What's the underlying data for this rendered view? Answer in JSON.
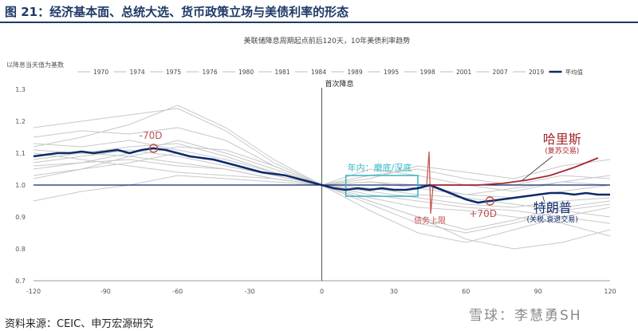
{
  "header": {
    "title": "图 21：经济基本面、总统大选、货币政策立场与美债利率的形态"
  },
  "footer": {
    "source": "资料来源：CEIC、申万宏源研究"
  },
  "watermark": {
    "text": "雪球：李慧勇SH"
  },
  "chart_data": {
    "type": "line",
    "title": "美联储降息周期起点前后120天，10年美债利率趋势",
    "ylabel": "以降息当天值为基数",
    "xlim": [
      -120,
      120
    ],
    "ylim": [
      0.7,
      1.3
    ],
    "x_ticks": [
      -120,
      -90,
      -60,
      -30,
      0,
      30,
      60,
      90,
      120
    ],
    "y_ticks": [
      0.7,
      0.8,
      0.9,
      1.0,
      1.1,
      1.2,
      1.3
    ],
    "grid": false,
    "legend_position": "top",
    "colors": {
      "history": "#c8c8c8",
      "average": "#0d2a6b",
      "harris": "#a8282d",
      "box": "#33b5c4",
      "annotation": "#c0504d"
    },
    "series_names": [
      "1970",
      "1974",
      "1975",
      "1976",
      "1980",
      "1981",
      "1984",
      "1989",
      "1995",
      "1998",
      "2001",
      "2007",
      "2019",
      "平均值"
    ],
    "average": {
      "name": "平均值",
      "x": [
        -120,
        -115,
        -110,
        -105,
        -100,
        -95,
        -90,
        -85,
        -80,
        -75,
        -70,
        -65,
        -60,
        -55,
        -50,
        -45,
        -40,
        -35,
        -30,
        -25,
        -20,
        -15,
        -10,
        -5,
        0,
        5,
        10,
        15,
        20,
        25,
        30,
        35,
        40,
        45,
        50,
        55,
        60,
        65,
        70,
        75,
        80,
        85,
        90,
        95,
        100,
        105,
        110,
        115,
        120
      ],
      "y": [
        1.09,
        1.095,
        1.1,
        1.1,
        1.105,
        1.1,
        1.105,
        1.11,
        1.1,
        1.11,
        1.115,
        1.11,
        1.1,
        1.09,
        1.085,
        1.08,
        1.07,
        1.06,
        1.05,
        1.04,
        1.035,
        1.03,
        1.02,
        1.01,
        1.0,
        0.99,
        0.985,
        0.99,
        0.985,
        0.99,
        0.985,
        0.985,
        0.99,
        1.0,
        0.985,
        0.97,
        0.955,
        0.945,
        0.95,
        0.955,
        0.96,
        0.965,
        0.97,
        0.975,
        0.975,
        0.97,
        0.975,
        0.97,
        0.97
      ]
    },
    "history": [
      {
        "x": [
          -120,
          -100,
          -80,
          -60,
          -40,
          -20,
          0,
          20,
          40,
          60,
          80,
          100,
          120
        ],
        "y": [
          1.05,
          1.07,
          1.1,
          1.14,
          1.1,
          1.05,
          1.0,
          0.95,
          0.9,
          0.86,
          0.89,
          0.93,
          0.95
        ]
      },
      {
        "x": [
          -120,
          -100,
          -80,
          -60,
          -40,
          -20,
          0,
          20,
          40,
          60,
          80,
          100,
          120
        ],
        "y": [
          1.18,
          1.2,
          1.22,
          1.24,
          1.17,
          1.07,
          1.0,
          1.02,
          1.06,
          1.04,
          1.02,
          1.06,
          1.08
        ]
      },
      {
        "x": [
          -120,
          -100,
          -80,
          -60,
          -40,
          -20,
          0,
          20,
          40,
          60,
          80,
          100,
          120
        ],
        "y": [
          1.02,
          1.05,
          1.09,
          1.12,
          1.11,
          1.06,
          1.0,
          0.92,
          0.85,
          0.82,
          0.86,
          0.9,
          0.93
        ]
      },
      {
        "x": [
          -120,
          -100,
          -80,
          -60,
          -40,
          -20,
          0,
          20,
          40,
          60,
          80,
          100,
          120
        ],
        "y": [
          1.12,
          1.15,
          1.19,
          1.25,
          1.18,
          1.08,
          1.0,
          1.05,
          1.03,
          1.0,
          0.98,
          1.01,
          1.03
        ]
      },
      {
        "x": [
          -120,
          -100,
          -80,
          -60,
          -40,
          -20,
          0,
          20,
          40,
          60,
          80,
          100,
          120
        ],
        "y": [
          0.95,
          0.98,
          1.0,
          1.03,
          1.02,
          1.01,
          1.0,
          0.97,
          0.95,
          0.93,
          0.92,
          0.9,
          0.88
        ]
      },
      {
        "x": [
          -120,
          -100,
          -80,
          -60,
          -40,
          -20,
          0,
          20,
          40,
          60,
          80,
          100,
          120
        ],
        "y": [
          1.15,
          1.17,
          1.16,
          1.18,
          1.14,
          1.06,
          1.0,
          1.01,
          1.0,
          0.97,
          0.96,
          0.98,
          1.0
        ]
      },
      {
        "x": [
          -120,
          -100,
          -80,
          -60,
          -40,
          -20,
          0,
          20,
          40,
          60,
          80,
          100,
          120
        ],
        "y": [
          1.08,
          1.1,
          1.12,
          1.13,
          1.09,
          1.04,
          1.0,
          0.98,
          0.96,
          0.94,
          0.93,
          0.95,
          0.96
        ]
      },
      {
        "x": [
          -120,
          -100,
          -80,
          -60,
          -40,
          -20,
          0,
          20,
          40,
          60,
          80,
          100,
          120
        ],
        "y": [
          1.1,
          1.08,
          1.06,
          1.04,
          1.03,
          1.02,
          1.0,
          0.99,
          0.97,
          0.96,
          0.94,
          0.92,
          0.9
        ]
      },
      {
        "x": [
          -120,
          -100,
          -80,
          -60,
          -40,
          -20,
          0,
          20,
          40,
          60,
          80,
          100,
          120
        ],
        "y": [
          1.13,
          1.12,
          1.14,
          1.11,
          1.08,
          1.04,
          1.0,
          0.96,
          0.93,
          0.92,
          0.9,
          0.88,
          0.84
        ]
      },
      {
        "x": [
          -120,
          -100,
          -80,
          -60,
          -40,
          -20,
          0,
          20,
          40,
          60,
          80,
          100,
          120
        ],
        "y": [
          1.07,
          1.09,
          1.11,
          1.09,
          1.06,
          1.03,
          1.0,
          1.03,
          1.05,
          1.02,
          1.0,
          1.03,
          1.02
        ]
      },
      {
        "x": [
          -120,
          -100,
          -80,
          -60,
          -40,
          -20,
          0,
          20,
          40,
          60,
          80,
          100,
          120
        ],
        "y": [
          1.03,
          1.05,
          1.07,
          1.1,
          1.07,
          1.03,
          1.0,
          0.94,
          0.88,
          0.85,
          0.88,
          0.92,
          0.94
        ]
      },
      {
        "x": [
          -120,
          -100,
          -80,
          -60,
          -40,
          -20,
          0,
          20,
          40,
          60,
          80,
          100,
          120
        ],
        "y": [
          1.06,
          1.07,
          1.08,
          1.06,
          1.05,
          1.02,
          1.0,
          0.95,
          0.9,
          0.83,
          0.8,
          0.82,
          0.86
        ]
      },
      {
        "x": [
          -120,
          -100,
          -80,
          -60,
          -40,
          -20,
          0,
          20,
          40,
          60,
          80,
          100,
          120
        ],
        "y": [
          1.11,
          1.1,
          1.09,
          1.07,
          1.05,
          1.02,
          1.0,
          1.01,
          0.99,
          0.97,
          0.99,
          1.01,
          1.0
        ]
      }
    ],
    "harris_curve": {
      "x": [
        45,
        55,
        65,
        75,
        85,
        95,
        105,
        115
      ],
      "y": [
        1.0,
        1.0,
        1.0,
        1.005,
        1.015,
        1.03,
        1.055,
        1.085
      ]
    },
    "annotations": {
      "first_cut": "首次降息",
      "minus70": "-70D",
      "plus70": "+70D",
      "box_label": "年内：磨底/深底",
      "debt_ceiling": "债务上限",
      "harris": "哈里斯",
      "harris_sub": "(复苏交易)",
      "trump": "特朗普",
      "trump_sub": "(关税-衰退交易)"
    },
    "markers": [
      {
        "x": -70,
        "y": 1.115
      },
      {
        "x": 70,
        "y": 0.95
      }
    ],
    "box": {
      "x": [
        10,
        40
      ],
      "y": [
        0.965,
        1.03
      ]
    }
  }
}
